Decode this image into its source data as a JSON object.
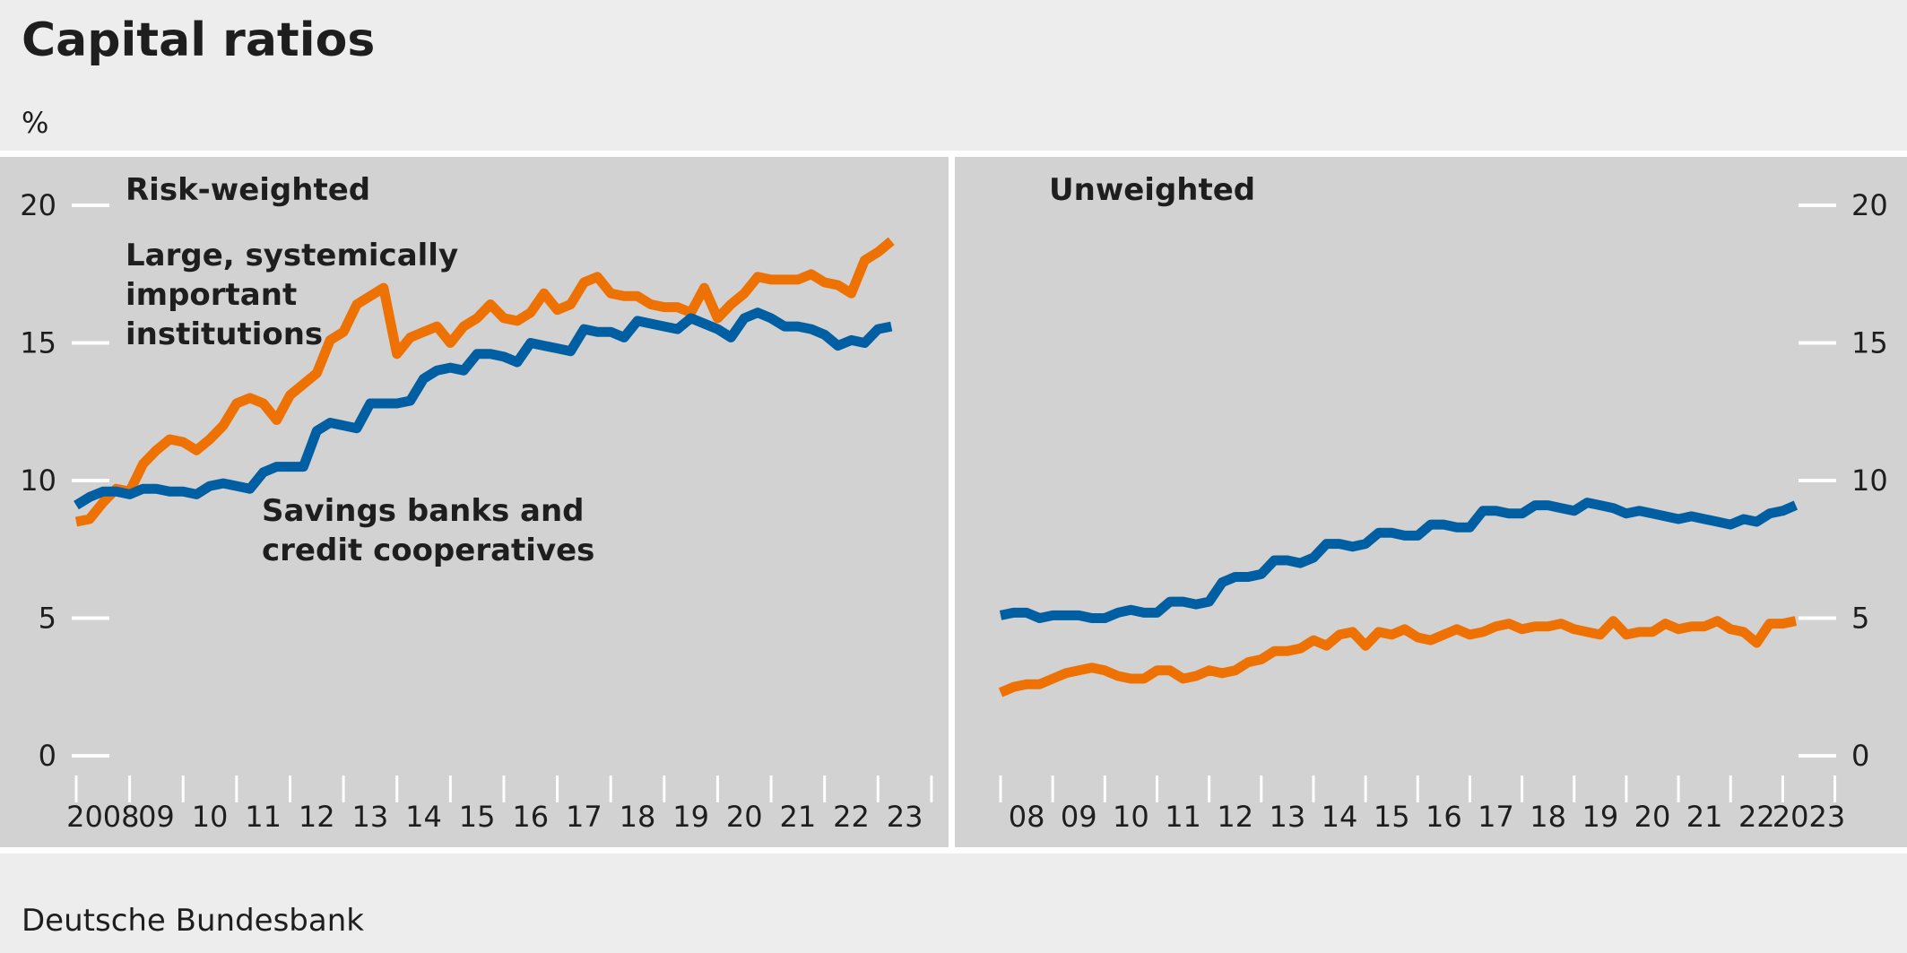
{
  "title": "Capital ratios",
  "unit": "%",
  "source": "Deutsche Bundesbank",
  "colors": {
    "figure_background": "#ededed",
    "panel_background": "#d2d2d2",
    "large_institutions": "#ee7203",
    "savings_banks": "#005ea2",
    "gridline": "#ffffff"
  },
  "chart_data": [
    {
      "type": "line",
      "title": "Risk-weighted",
      "ylabel": "%",
      "ylim": [
        0,
        20
      ],
      "yticks": [
        0,
        5,
        10,
        15,
        20
      ],
      "xlim": [
        2008,
        2023.75
      ],
      "xtick_labels": [
        {
          "x": 2008.5,
          "label": "2008"
        },
        {
          "x": 2009.5,
          "label": "09"
        },
        {
          "x": 2010.5,
          "label": "10"
        },
        {
          "x": 2011.5,
          "label": "11"
        },
        {
          "x": 2012.5,
          "label": "12"
        },
        {
          "x": 2013.5,
          "label": "13"
        },
        {
          "x": 2014.5,
          "label": "14"
        },
        {
          "x": 2015.5,
          "label": "15"
        },
        {
          "x": 2016.5,
          "label": "16"
        },
        {
          "x": 2017.5,
          "label": "17"
        },
        {
          "x": 2018.5,
          "label": "18"
        },
        {
          "x": 2019.5,
          "label": "19"
        },
        {
          "x": 2020.5,
          "label": "20"
        },
        {
          "x": 2021.5,
          "label": "21"
        },
        {
          "x": 2022.5,
          "label": "22"
        },
        {
          "x": 2023.5,
          "label": "23"
        }
      ],
      "annotations": [
        {
          "text": "Large, systemically\nimportant\ninstitutions",
          "series": 0
        },
        {
          "text": "Savings banks and\ncredit cooperatives",
          "series": 1
        }
      ],
      "x_start": 2008.0,
      "x_step": 0.25,
      "series": [
        {
          "color": "#ee7203",
          "values": [
            8.5,
            8.6,
            9.2,
            9.7,
            9.6,
            10.6,
            11.1,
            11.5,
            11.4,
            11.1,
            11.5,
            12.0,
            12.8,
            13.0,
            12.8,
            12.2,
            13.1,
            13.5,
            13.9,
            15.1,
            15.4,
            16.4,
            16.7,
            17.0,
            14.6,
            15.2,
            15.4,
            15.6,
            15.0,
            15.6,
            15.9,
            16.4,
            15.9,
            15.8,
            16.1,
            16.8,
            16.2,
            16.4,
            17.2,
            17.4,
            16.8,
            16.7,
            16.7,
            16.4,
            16.3,
            16.3,
            16.1,
            17.0,
            15.9,
            16.4,
            16.8,
            17.4,
            17.3,
            17.3,
            17.3,
            17.5,
            17.2,
            17.1,
            16.8,
            18.0,
            18.3,
            18.7
          ]
        },
        {
          "color": "#005ea2",
          "values": [
            9.1,
            9.4,
            9.6,
            9.6,
            9.5,
            9.7,
            9.7,
            9.6,
            9.6,
            9.5,
            9.8,
            9.9,
            9.8,
            9.7,
            10.3,
            10.5,
            10.5,
            10.5,
            11.8,
            12.1,
            12.0,
            11.9,
            12.8,
            12.8,
            12.8,
            12.9,
            13.7,
            14.0,
            14.1,
            14.0,
            14.6,
            14.6,
            14.5,
            14.3,
            15.0,
            14.9,
            14.8,
            14.7,
            15.5,
            15.4,
            15.4,
            15.2,
            15.8,
            15.7,
            15.6,
            15.5,
            15.9,
            15.7,
            15.5,
            15.2,
            15.9,
            16.1,
            15.9,
            15.6,
            15.6,
            15.5,
            15.3,
            14.9,
            15.1,
            15.0,
            15.5,
            15.6
          ]
        }
      ]
    },
    {
      "type": "line",
      "title": "Unweighted",
      "ylabel": "%",
      "ylim": [
        0,
        20
      ],
      "yticks": [
        0,
        5,
        10,
        15,
        20
      ],
      "xlim": [
        2008,
        2023.75
      ],
      "xtick_labels": [
        {
          "x": 2008.5,
          "label": "08"
        },
        {
          "x": 2009.5,
          "label": "09"
        },
        {
          "x": 2010.5,
          "label": "10"
        },
        {
          "x": 2011.5,
          "label": "11"
        },
        {
          "x": 2012.5,
          "label": "12"
        },
        {
          "x": 2013.5,
          "label": "13"
        },
        {
          "x": 2014.5,
          "label": "14"
        },
        {
          "x": 2015.5,
          "label": "15"
        },
        {
          "x": 2016.5,
          "label": "16"
        },
        {
          "x": 2017.5,
          "label": "17"
        },
        {
          "x": 2018.5,
          "label": "18"
        },
        {
          "x": 2019.5,
          "label": "19"
        },
        {
          "x": 2020.5,
          "label": "20"
        },
        {
          "x": 2021.5,
          "label": "21"
        },
        {
          "x": 2022.5,
          "label": "22"
        },
        {
          "x": 2023.5,
          "label": "2023"
        }
      ],
      "x_start": 2008.0,
      "x_step": 0.25,
      "series": [
        {
          "color": "#ee7203",
          "values": [
            2.3,
            2.5,
            2.6,
            2.6,
            2.8,
            3.0,
            3.1,
            3.2,
            3.1,
            2.9,
            2.8,
            2.8,
            3.1,
            3.1,
            2.8,
            2.9,
            3.1,
            3.0,
            3.1,
            3.4,
            3.5,
            3.8,
            3.8,
            3.9,
            4.2,
            4.0,
            4.4,
            4.5,
            4.0,
            4.5,
            4.4,
            4.6,
            4.3,
            4.2,
            4.4,
            4.6,
            4.4,
            4.5,
            4.7,
            4.8,
            4.6,
            4.7,
            4.7,
            4.8,
            4.6,
            4.5,
            4.4,
            4.9,
            4.4,
            4.5,
            4.5,
            4.8,
            4.6,
            4.7,
            4.7,
            4.9,
            4.6,
            4.5,
            4.1,
            4.8,
            4.8,
            4.9
          ]
        },
        {
          "color": "#005ea2",
          "values": [
            5.1,
            5.2,
            5.2,
            5.0,
            5.1,
            5.1,
            5.1,
            5.0,
            5.0,
            5.2,
            5.3,
            5.2,
            5.2,
            5.6,
            5.6,
            5.5,
            5.6,
            6.3,
            6.5,
            6.5,
            6.6,
            7.1,
            7.1,
            7.0,
            7.2,
            7.7,
            7.7,
            7.6,
            7.7,
            8.1,
            8.1,
            8.0,
            8.0,
            8.4,
            8.4,
            8.3,
            8.3,
            8.9,
            8.9,
            8.8,
            8.8,
            9.1,
            9.1,
            9.0,
            8.9,
            9.2,
            9.1,
            9.0,
            8.8,
            8.9,
            8.8,
            8.7,
            8.6,
            8.7,
            8.6,
            8.5,
            8.4,
            8.6,
            8.5,
            8.8,
            8.9,
            9.1
          ]
        }
      ]
    }
  ]
}
